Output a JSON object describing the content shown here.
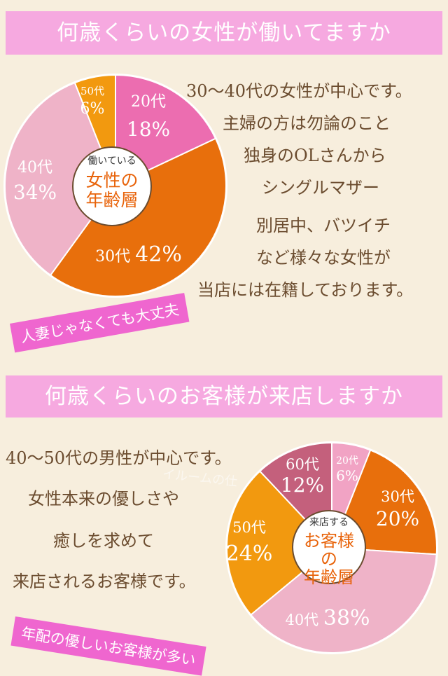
{
  "section1": {
    "banner": "何歳くらいの女性が働いてますか",
    "center_small": "働いている",
    "center_big": [
      "女性の",
      "年齢層"
    ],
    "description": [
      "30〜40代の女性が中心です。",
      "主婦の方は勿論のこと",
      "独身のOLさんから",
      "シングルマザー",
      "別居中、バツイチ",
      "など様々な女性が",
      "当店には在籍しております。"
    ],
    "tag": "人妻じゃなくても大丈夫"
  },
  "section2": {
    "banner": "何歳くらいのお客様が来店しますか",
    "center_small": "来店する",
    "center_big": [
      "お客様",
      "の",
      "年齢層"
    ],
    "description": [
      "40〜50代の男性が中心です。",
      "女性本来の優しさや",
      "癒しを求めて",
      "来店されるお客様です。"
    ],
    "tag": "年配の優しいお客様が多い",
    "watermark": "イルームの仕"
  },
  "chart_data": [
    {
      "type": "pie",
      "title": "",
      "slices": [
        {
          "label": "20代",
          "value": 18,
          "pct_text": "18%",
          "color": "#ec6db0"
        },
        {
          "label": "30代",
          "value": 42,
          "pct_text": "42%",
          "color": "#e86f0c"
        },
        {
          "label": "40代",
          "value": 34,
          "pct_text": "34%",
          "color": "#efb3c8"
        },
        {
          "label": "50代",
          "value": 6,
          "pct_text": "6%",
          "color": "#f2990f"
        }
      ]
    },
    {
      "type": "pie",
      "title": "",
      "slices": [
        {
          "label": "20代",
          "value": 6,
          "pct_text": "6%",
          "color": "#f1a3c4"
        },
        {
          "label": "30代",
          "value": 20,
          "pct_text": "20%",
          "color": "#e86f0c"
        },
        {
          "label": "40代",
          "value": 38,
          "pct_text": "38%",
          "color": "#efb3c8"
        },
        {
          "label": "50代",
          "value": 24,
          "pct_text": "24%",
          "color": "#f2990f"
        },
        {
          "label": "60代",
          "value": 12,
          "pct_text": "12%",
          "color": "#c4607c"
        }
      ]
    }
  ]
}
